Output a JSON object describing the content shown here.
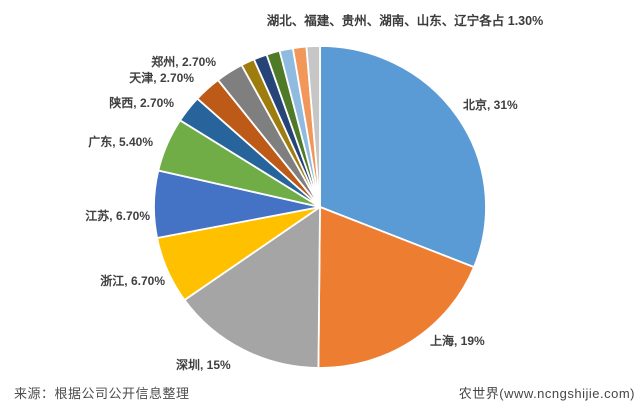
{
  "page": {
    "background_color": "#ffffff",
    "title": ""
  },
  "chart_data": {
    "type": "pie",
    "title": "",
    "unit": "%",
    "direction": "clockwise",
    "start_angle_deg": 0,
    "labels_position": "outside",
    "legend": "none",
    "label_color": "#404040",
    "slices": [
      {
        "id": "beijing",
        "label": "北京",
        "value": 31,
        "display": "北京, 31%",
        "color": "#5B9BD5"
      },
      {
        "id": "shanghai",
        "label": "上海",
        "value": 19,
        "display": "上海, 19%",
        "color": "#ED7D31"
      },
      {
        "id": "shenzhen",
        "label": "深圳",
        "value": 15,
        "display": "深圳, 15%",
        "color": "#A5A5A5"
      },
      {
        "id": "zhejiang",
        "label": "浙江",
        "value": 6.7,
        "display": "浙江, 6.70%",
        "color": "#FFC000"
      },
      {
        "id": "jiangsu",
        "label": "江苏",
        "value": 6.7,
        "display": "江苏, 6.70%",
        "color": "#4472C4"
      },
      {
        "id": "guangdong",
        "label": "广东",
        "value": 5.4,
        "display": "广东, 5.40%",
        "color": "#70AD47"
      },
      {
        "id": "shaanxi",
        "label": "陕西",
        "value": 2.7,
        "display": "陕西, 2.70%",
        "color": "#27649C"
      },
      {
        "id": "tianjin",
        "label": "天津",
        "value": 2.7,
        "display": "天津, 2.70%",
        "color": "#BE5A17"
      },
      {
        "id": "zhengzhou",
        "label": "郑州",
        "value": 2.7,
        "display": "郑州, 2.70%",
        "color": "#7F7F7F"
      },
      {
        "id": "hubei",
        "label": "湖北",
        "value": 1.3,
        "color": "#9E7C0E"
      },
      {
        "id": "fujian",
        "label": "福建",
        "value": 1.3,
        "color": "#264478"
      },
      {
        "id": "guizhou",
        "label": "贵州",
        "value": 1.3,
        "color": "#4F7A28"
      },
      {
        "id": "hunan",
        "label": "湖南",
        "value": 1.3,
        "color": "#8FBBE0"
      },
      {
        "id": "shandong",
        "label": "山东",
        "value": 1.3,
        "color": "#F1975A"
      },
      {
        "id": "liaoning",
        "label": "辽宁",
        "value": 1.3,
        "color": "#C6C6C6"
      }
    ],
    "small_slices_group_label": "湖北、福建、贵州、湖南、山东、辽宁各占 1.30%"
  },
  "footer": {
    "source_note": "来源：根据公司公开信息整理",
    "brand": "农世界(www.ncngshijie.com)"
  }
}
